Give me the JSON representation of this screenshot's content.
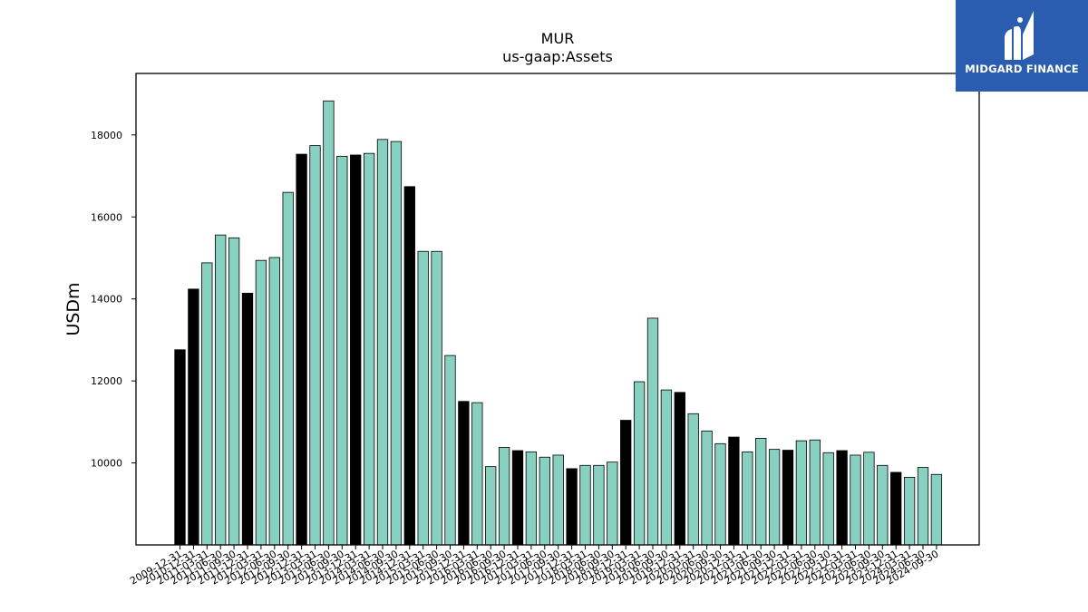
{
  "chart_data": {
    "type": "bar",
    "title": "MUR",
    "subtitle": "us-gaap:Assets",
    "xlabel": "",
    "ylabel": "USDm",
    "ylim": [
      8000,
      19500
    ],
    "yticks": [
      10000,
      12000,
      14000,
      16000,
      18000
    ],
    "grid": false,
    "colors": {
      "annual": "#000000",
      "quarter": "#88d0c0",
      "edge": "#000000"
    },
    "categories": [
      "2009-12-31",
      "2010-12-31",
      "2011-03-31",
      "2011-06-30",
      "2011-09-30",
      "2011-12-31",
      "2012-03-31",
      "2012-06-30",
      "2012-09-30",
      "2012-12-31",
      "2013-03-31",
      "2013-06-30",
      "2013-09-30",
      "2013-12-31",
      "2014-03-31",
      "2014-06-30",
      "2014-09-30",
      "2014-12-31",
      "2015-03-31",
      "2015-06-30",
      "2015-09-30",
      "2015-12-31",
      "2016-03-31",
      "2016-06-30",
      "2016-09-30",
      "2016-12-31",
      "2017-03-31",
      "2017-06-30",
      "2017-09-30",
      "2017-12-31",
      "2018-03-31",
      "2018-06-30",
      "2018-09-30",
      "2018-12-31",
      "2019-03-31",
      "2019-06-30",
      "2019-09-30",
      "2019-12-31",
      "2020-03-31",
      "2020-06-30",
      "2020-09-30",
      "2020-12-31",
      "2021-03-31",
      "2021-06-30",
      "2021-09-30",
      "2021-12-31",
      "2022-03-31",
      "2022-06-30",
      "2022-09-30",
      "2022-12-31",
      "2023-03-31",
      "2023-06-30",
      "2023-09-30",
      "2023-12-31",
      "2024-03-31",
      "2024-06-30",
      "2024-09-30"
    ],
    "values": [
      12760,
      14240,
      14880,
      15560,
      15490,
      14140,
      14940,
      15010,
      16600,
      17530,
      17740,
      18830,
      17480,
      17510,
      17550,
      17890,
      17840,
      16740,
      15160,
      15160,
      12620,
      11500,
      11470,
      9910,
      10380,
      10300,
      10270,
      10140,
      10190,
      9860,
      9940,
      9940,
      10020,
      11040,
      11980,
      13530,
      11780,
      11720,
      11200,
      10780,
      10470,
      10630,
      10270,
      10600,
      10330,
      10310,
      10540,
      10560,
      10250,
      10300,
      10190,
      10260,
      9940,
      9770,
      9650,
      9890,
      9720
    ],
    "annual_flags": [
      1,
      1,
      0,
      0,
      0,
      1,
      0,
      0,
      0,
      1,
      0,
      0,
      0,
      1,
      0,
      0,
      0,
      1,
      0,
      0,
      0,
      1,
      0,
      0,
      0,
      1,
      0,
      0,
      0,
      1,
      0,
      0,
      0,
      1,
      0,
      0,
      0,
      1,
      0,
      0,
      0,
      1,
      0,
      0,
      0,
      1,
      0,
      0,
      0,
      1,
      0,
      0,
      0,
      1,
      0,
      0,
      0
    ]
  },
  "logo": {
    "text": "MIDGARD FINANCE",
    "background": "#2a5db0",
    "icon": "midgard-m-icon"
  }
}
